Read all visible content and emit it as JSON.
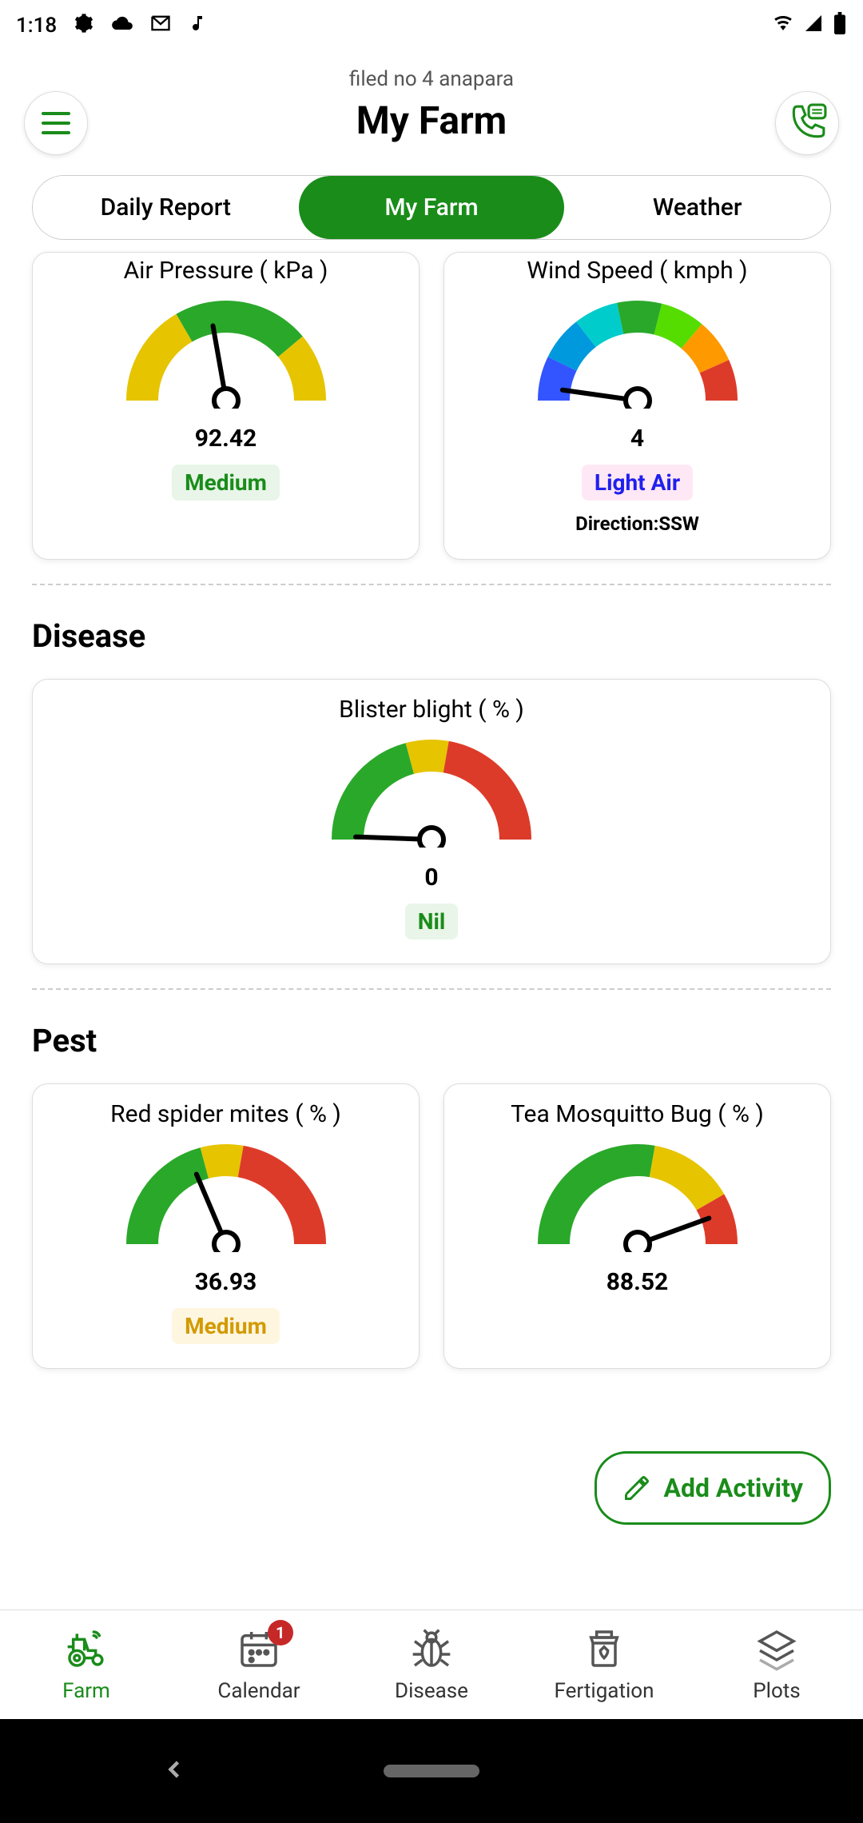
{
  "statusBar": {
    "time": "1:18"
  },
  "header": {
    "sub": "filed no 4 anapara",
    "title": "My Farm"
  },
  "tabs": {
    "t1": "Daily Report",
    "t2": "My Farm",
    "t3": "Weather"
  },
  "gaugeColors": {
    "green": "#2aa82a",
    "yellow": "#e6c400",
    "red": "#dd3b2a",
    "blue1": "#3355ff",
    "blue2": "#0099dd",
    "cyan": "#00cccc",
    "lime": "#55dd00",
    "orange": "#ff9900"
  },
  "cards": {
    "air": {
      "title": "Air Pressure ( kPa )",
      "value": "92.42",
      "status": "Medium",
      "statusColor": "#1a8c1a",
      "statusBg": "#e8f5e8",
      "gaugeSegments": [
        {
          "start": -180,
          "end": -120,
          "color": "#e6c400"
        },
        {
          "start": -120,
          "end": -40,
          "color": "#2aa82a"
        },
        {
          "start": -40,
          "end": 0,
          "color": "#e6c400"
        }
      ],
      "needleAngle": -100
    },
    "wind": {
      "title": "Wind Speed ( kmph )",
      "value": "4",
      "status": "Light Air",
      "statusColor": "#2020ee",
      "statusBg": "#ffe8f5",
      "sub": "Direction:SSW",
      "gaugeSegments": [
        {
          "start": -180,
          "end": -154,
          "color": "#3355ff"
        },
        {
          "start": -154,
          "end": -128,
          "color": "#0099dd"
        },
        {
          "start": -128,
          "end": -102,
          "color": "#00cccc"
        },
        {
          "start": -102,
          "end": -76,
          "color": "#2aa82a"
        },
        {
          "start": -76,
          "end": -50,
          "color": "#55dd00"
        },
        {
          "start": -50,
          "end": -24,
          "color": "#ff9900"
        },
        {
          "start": -24,
          "end": 0,
          "color": "#dd3b2a"
        }
      ],
      "needleAngle": -172
    },
    "blister": {
      "title": "Blister blight ( % )",
      "value": "0",
      "status": "Nil",
      "statusColor": "#1a8c1a",
      "statusBg": "#e8f5e8",
      "gaugeSegments": [
        {
          "start": -180,
          "end": -105,
          "color": "#2aa82a"
        },
        {
          "start": -105,
          "end": -80,
          "color": "#e6c400"
        },
        {
          "start": -80,
          "end": 0,
          "color": "#dd3b2a"
        }
      ],
      "needleAngle": -178
    },
    "spider": {
      "title": "Red spider mites ( % )",
      "value": "36.93",
      "status": "Medium",
      "statusColor": "#d39a00",
      "statusBg": "#fff6e0",
      "gaugeSegments": [
        {
          "start": -180,
          "end": -105,
          "color": "#2aa82a"
        },
        {
          "start": -105,
          "end": -80,
          "color": "#e6c400"
        },
        {
          "start": -80,
          "end": 0,
          "color": "#dd3b2a"
        }
      ],
      "needleAngle": -113
    },
    "mosquito": {
      "title": "Tea Mosquitto Bug ( % )",
      "value": "88.52",
      "gaugeSegments": [
        {
          "start": -180,
          "end": -80,
          "color": "#2aa82a"
        },
        {
          "start": -80,
          "end": -30,
          "color": "#e6c400"
        },
        {
          "start": -30,
          "end": 0,
          "color": "#dd3b2a"
        }
      ],
      "needleAngle": -20
    }
  },
  "sections": {
    "disease": "Disease",
    "pest": "Pest"
  },
  "addActivity": "Add Activity",
  "bottomNav": {
    "farm": "Farm",
    "calendar": "Calendar",
    "calendarBadge": "1",
    "disease": "Disease",
    "fertigation": "Fertigation",
    "plots": "Plots"
  }
}
